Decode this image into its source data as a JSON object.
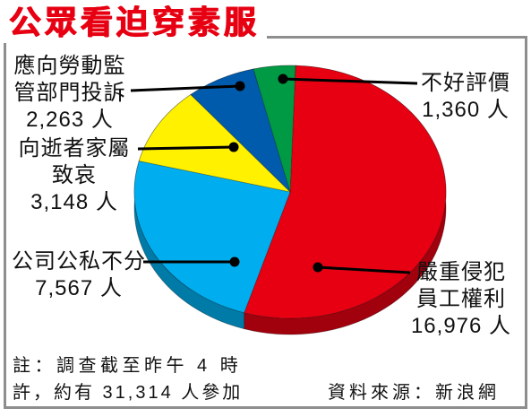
{
  "chart_data": {
    "type": "pie",
    "style": "3d",
    "title": "公眾看迫穿素服",
    "unit": "人",
    "slices": [
      {
        "label": "嚴重侵犯員工權利",
        "value": 16976,
        "color": "#e60012"
      },
      {
        "label": "公司公私不分",
        "value": 7567,
        "color": "#00aeef"
      },
      {
        "label": "向逝者家屬致哀",
        "value": 3148,
        "color": "#fff100"
      },
      {
        "label": "應向勞動監管部門投訴",
        "value": 2263,
        "color": "#005bac"
      },
      {
        "label": "不好評價",
        "value": 1360,
        "color": "#009944"
      }
    ]
  },
  "note_lines": [
    "註：調查截至昨午 4 時",
    "許，約有 31,314 人參加"
  ],
  "source": "資料來源：新浪網"
}
